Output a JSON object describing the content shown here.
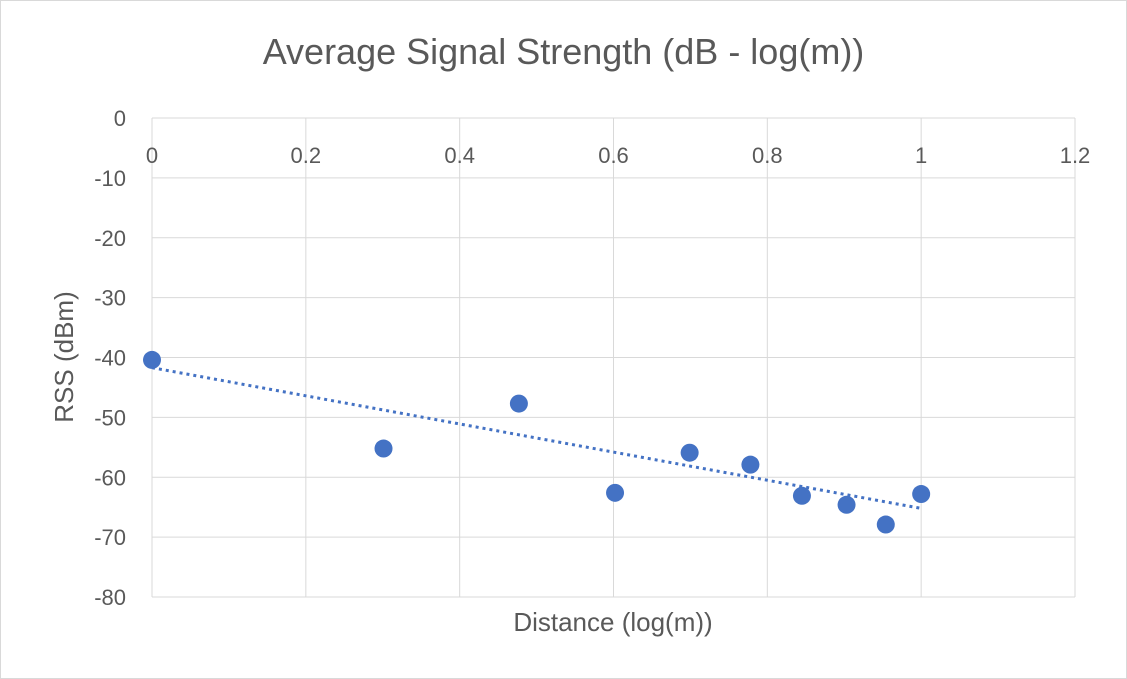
{
  "chart_data": {
    "type": "scatter",
    "title": "Average Signal Strength (dB - log(m))",
    "xlabel": "Distance (log(m))",
    "ylabel": "RSS (dBm)",
    "xlim": [
      0,
      1.2
    ],
    "ylim": [
      -80,
      0
    ],
    "x_ticks": [
      "0",
      "0.2",
      "0.4",
      "0.6",
      "0.8",
      "1",
      "1.2"
    ],
    "y_ticks": [
      "0",
      "-10",
      "-20",
      "-30",
      "-40",
      "-50",
      "-60",
      "-70",
      "-80"
    ],
    "grid": true,
    "legend": "none",
    "series": [
      {
        "color": "#4472c4",
        "points": [
          {
            "x": 0,
            "y": -40.4
          },
          {
            "x": 0.301,
            "y": -55.2
          },
          {
            "x": 0.477,
            "y": -47.7
          },
          {
            "x": 0.602,
            "y": -62.6
          },
          {
            "x": 0.699,
            "y": -55.9
          },
          {
            "x": 0.778,
            "y": -57.9
          },
          {
            "x": 0.845,
            "y": -63.1
          },
          {
            "x": 0.903,
            "y": -64.6
          },
          {
            "x": 0.954,
            "y": -67.9
          },
          {
            "x": 1,
            "y": -62.8
          }
        ]
      }
    ],
    "trendline": {
      "type": "linear",
      "style": "dotted",
      "color": "#4472c4",
      "start": {
        "x": 0,
        "y": -41.7
      },
      "end": {
        "x": 1,
        "y": -65.2
      }
    }
  }
}
